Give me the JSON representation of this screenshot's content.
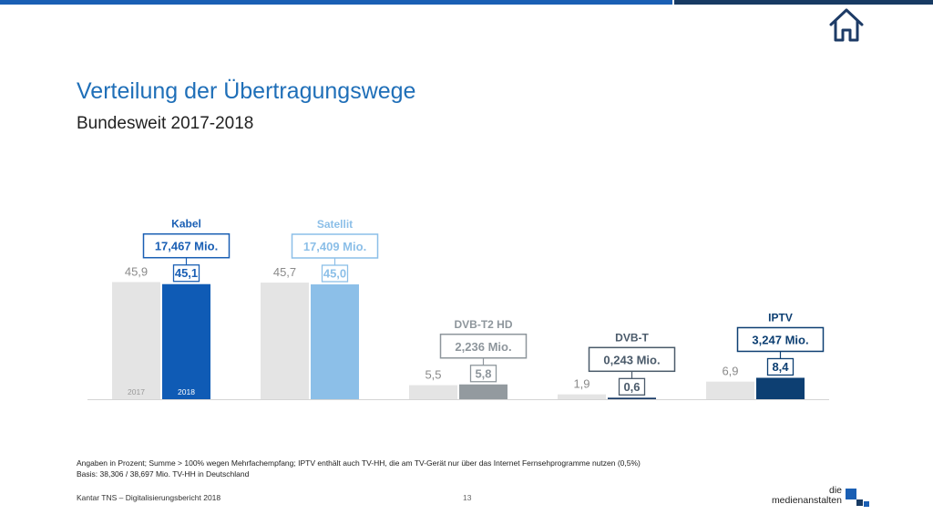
{
  "header": {
    "title": "Verteilung der Übertragungswege",
    "subtitle": "Bundesweit 2017-2018",
    "home_icon": "home-icon"
  },
  "chart_data": {
    "type": "bar",
    "categories": [
      "Kabel",
      "Satellit",
      "DVB-T2 HD",
      "DVB-T",
      "IPTV"
    ],
    "series": [
      {
        "name": "2017",
        "values": [
          45.9,
          45.7,
          5.5,
          1.9,
          6.9
        ]
      },
      {
        "name": "2018",
        "values": [
          45.1,
          45.0,
          5.8,
          0.6,
          8.4
        ]
      }
    ],
    "value_labels_2017": [
      "45,9",
      "45,7",
      "5,5",
      "1,9",
      "6,9"
    ],
    "value_labels_2018": [
      "45,1",
      "45,0",
      "5,8",
      "0,6",
      "8,4"
    ],
    "households_2018": [
      "17,467 Mio.",
      "17,409 Mio.",
      "2,236 Mio.",
      "0,243 Mio.",
      "3,247 Mio."
    ],
    "year_labels": [
      "2017",
      "2018"
    ],
    "colors_2018": [
      "#0f5bb5",
      "#8cbfe8",
      "#939a9f",
      "#183a66",
      "#0d3f72"
    ],
    "label_colors": [
      "#1a5fb4",
      "#8cbfe8",
      "#8e969c",
      "#4a5a6a",
      "#0d3f72"
    ],
    "color_2017": "#e4e4e4",
    "ylim": [
      0,
      50
    ]
  },
  "notes": {
    "line1": "Angaben in Prozent; Summe > 100% wegen Mehrfachempfang; IPTV enthält auch TV-HH, die am TV-Gerät nur über das Internet Fernsehprogramme nutzen (0,5%)",
    "line2": "Basis: 38,306 / 38,697 Mio. TV-HH in Deutschland"
  },
  "footer": {
    "source": "Kantar TNS – Digitalisierungsbericht 2018",
    "page": "13",
    "logo_line1": "die",
    "logo_line2": "medienanstalten"
  }
}
